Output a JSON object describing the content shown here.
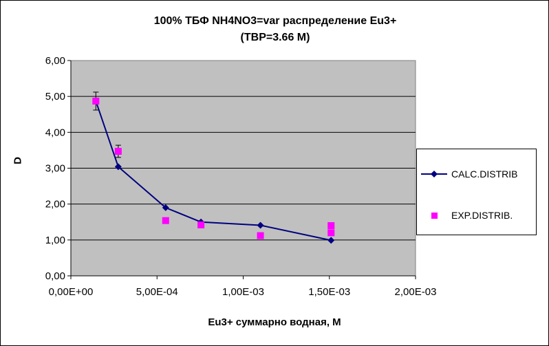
{
  "chart_data": {
    "type": "scatter",
    "title_line1": "100%  ТБФ  NH4NO3=var распределение Eu3+",
    "title_line2": "(TBP=3.66 M)",
    "xlabel": "Eu3+ суммарно   водная, М",
    "ylabel": "D",
    "xlim": [
      0,
      0.002
    ],
    "ylim": [
      0,
      6
    ],
    "x_ticks": [
      "0,00E+00",
      "5,00E-04",
      "1,00E-03",
      "1,50E-03",
      "2,00E-03"
    ],
    "y_ticks": [
      "0,00",
      "1,00",
      "2,00",
      "3,00",
      "4,00",
      "5,00",
      "6,00"
    ],
    "grid": "horizontal",
    "plot_background": "#c0c0c0",
    "legend_position": "right",
    "series": [
      {
        "name": "CALC.DISTRIB",
        "style": "line-diamond",
        "color": "#000080",
        "x": [
          0.000145,
          0.000275,
          0.00055,
          0.000755,
          0.0011,
          0.00151
        ],
        "y": [
          4.87,
          3.04,
          1.9,
          1.5,
          1.41,
          0.99
        ]
      },
      {
        "name": "EXP.DISTRIB.",
        "style": "square",
        "color": "#ff00ff",
        "x": [
          0.000145,
          0.000275,
          0.00055,
          0.000755,
          0.0011,
          0.00151,
          0.00151
        ],
        "y": [
          4.87,
          3.47,
          1.54,
          1.42,
          1.12,
          1.4,
          1.2
        ],
        "error": [
          0.25,
          0.17,
          0,
          0,
          0,
          0,
          0
        ]
      }
    ]
  }
}
